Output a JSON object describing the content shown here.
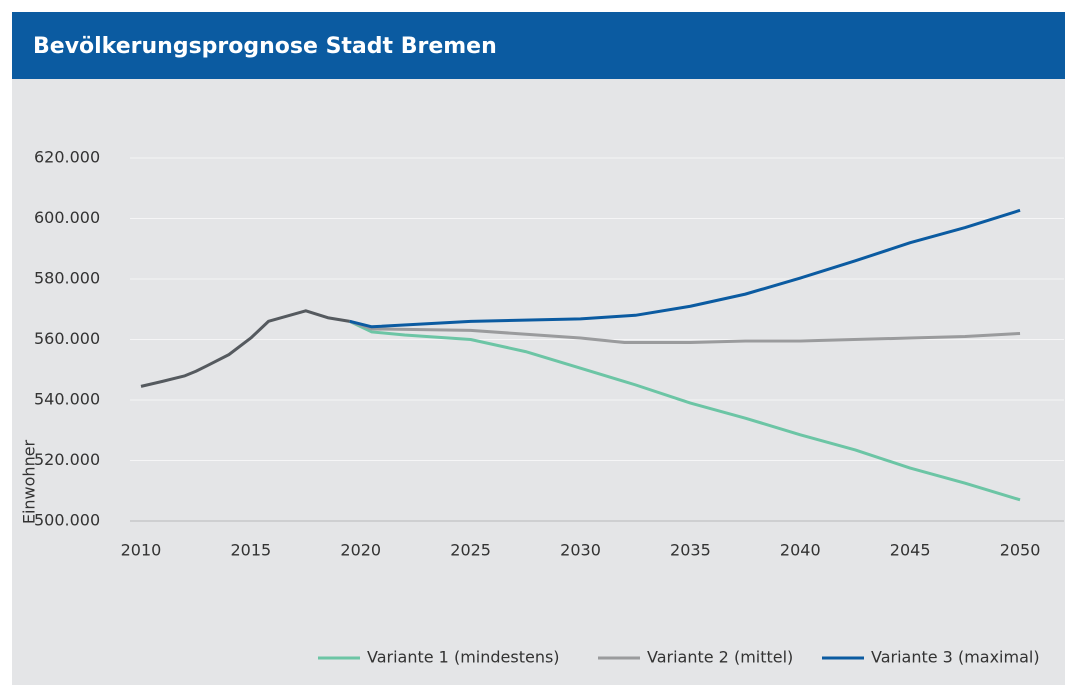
{
  "chart_data": {
    "type": "line",
    "title": "Bevölkerungsprognose Stadt Bremen",
    "y_label": "Einwohner",
    "xlim": [
      2009.5,
      2052
    ],
    "xticks": [
      2010,
      2015,
      2020,
      2025,
      2030,
      2035,
      2040,
      2045,
      2050
    ],
    "ylim": [
      500000,
      620000
    ],
    "yticks": [
      {
        "value": 500000,
        "label": "500.000"
      },
      {
        "value": 520000,
        "label": "520.000"
      },
      {
        "value": 540000,
        "label": "540.000"
      },
      {
        "value": 560000,
        "label": "560.000"
      },
      {
        "value": 580000,
        "label": "580.000"
      },
      {
        "value": 600000,
        "label": "600.000"
      },
      {
        "value": 620000,
        "label": "620.000"
      }
    ],
    "grid": true,
    "legend": "bottom-right",
    "series": [
      {
        "color": "#555a5f",
        "x": [
          2010,
          2011,
          2012,
          2012.5,
          2013,
          2014,
          2015,
          2015.8,
          2017.5,
          2018.5,
          2019.5
        ],
        "values": [
          544500,
          546200,
          548000,
          549500,
          551300,
          555000,
          560500,
          566000,
          569500,
          567200,
          566000
        ]
      },
      {
        "name": "Variante 1 (mindestens)",
        "color": "#6cc5a5",
        "x": [
          2019.5,
          2020.5,
          2022,
          2025,
          2027.5,
          2030,
          2032.5,
          2035,
          2037.5,
          2040,
          2042.5,
          2045,
          2047.5,
          2050
        ],
        "values": [
          566000,
          562500,
          561500,
          560000,
          556000,
          550500,
          545000,
          539000,
          534000,
          528500,
          523500,
          517500,
          512500,
          507000
        ]
      },
      {
        "name": "Variante 2 (mittel)",
        "color": "#9a9b9d",
        "x": [
          2019.5,
          2020.5,
          2025,
          2030,
          2032,
          2035,
          2037.5,
          2040,
          2045,
          2047.5,
          2050
        ],
        "values": [
          566000,
          563500,
          563000,
          560500,
          559000,
          559000,
          559500,
          559500,
          560500,
          561000,
          562000
        ]
      },
      {
        "name": "Variante 3 (maximal)",
        "color": "#0b5ba1",
        "x": [
          2019.5,
          2020.5,
          2025,
          2030,
          2032.5,
          2035,
          2037.5,
          2040,
          2042.5,
          2045,
          2047.5,
          2050
        ],
        "values": [
          566000,
          564200,
          566000,
          566800,
          568000,
          571000,
          575000,
          580300,
          586000,
          592000,
          597000,
          602700
        ]
      }
    ]
  }
}
